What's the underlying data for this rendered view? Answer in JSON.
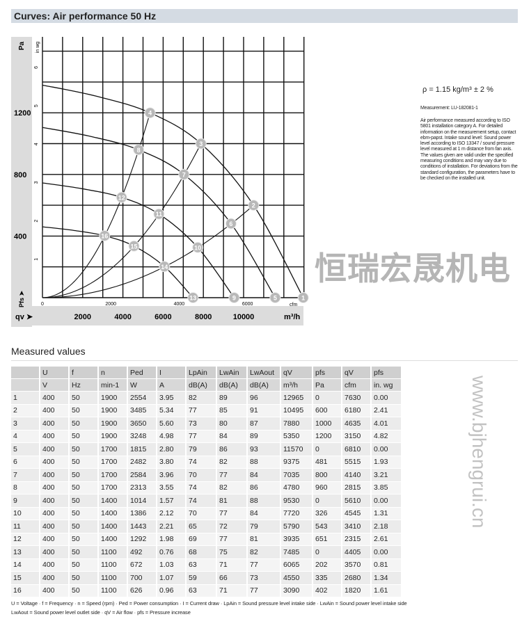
{
  "header": {
    "title": "Curves: Air performance 50 Hz"
  },
  "side_notes": {
    "density": "ρ = 1.15 kg/m³ ± 2 %",
    "measurement": "Measurement: LU-182081-1",
    "description": "Air performance measured according to ISO 5801 installation category A. For detailed information on the measurement setup, contact ebm-papst. Intake sound level: Sound power level according to ISO 13347 / sound pressure level measured at 1 m distance from fan axis. The values given are valid under the specified measuring conditions and may vary due to conditions of installation. For deviations from the standard configuration, the parameters have to be checked on the installed unit."
  },
  "chart_data": {
    "type": "line",
    "title": "Curves: Air performance 50 Hz",
    "xlabel": "qv ➤",
    "xunit": "m³/h",
    "xunit_secondary": "cfm",
    "ylabel": "Pa",
    "ylabel_secondary": "in wg",
    "ylabel_bottom": "Pfs ➤",
    "xlim": [
      0,
      13000
    ],
    "ylim": [
      0,
      1700
    ],
    "x_ticks": [
      "2000",
      "4000",
      "6000",
      "8000",
      "10000"
    ],
    "x_ticks_secondary": [
      "0",
      "2000",
      "4000",
      "6000"
    ],
    "y_ticks": [
      "400",
      "800",
      "1200"
    ],
    "y_ticks_secondary": [
      "1",
      "2",
      "3",
      "4",
      "5",
      "6"
    ],
    "grid": true,
    "points": [
      {
        "id": "1",
        "q": 12965,
        "p": 0
      },
      {
        "id": "2",
        "q": 10495,
        "p": 600
      },
      {
        "id": "3",
        "q": 7880,
        "p": 1000
      },
      {
        "id": "4",
        "q": 5350,
        "p": 1200
      },
      {
        "id": "5",
        "q": 11570,
        "p": 0
      },
      {
        "id": "6",
        "q": 9375,
        "p": 481
      },
      {
        "id": "7",
        "q": 7035,
        "p": 800
      },
      {
        "id": "8",
        "q": 4780,
        "p": 960
      },
      {
        "id": "9",
        "q": 9530,
        "p": 0
      },
      {
        "id": "10",
        "q": 7720,
        "p": 326
      },
      {
        "id": "11",
        "q": 5790,
        "p": 543
      },
      {
        "id": "12",
        "q": 3935,
        "p": 651
      },
      {
        "id": "13",
        "q": 7485,
        "p": 0
      },
      {
        "id": "14",
        "q": 6065,
        "p": 202
      },
      {
        "id": "15",
        "q": 4550,
        "p": 335
      },
      {
        "id": "16",
        "q": 3090,
        "p": 402
      }
    ],
    "fan_curves": [
      {
        "speed": 1900,
        "shutoff_p": 1380,
        "points": [
          "4",
          "3",
          "2",
          "1"
        ]
      },
      {
        "speed": 1700,
        "shutoff_p": 1105,
        "points": [
          "8",
          "7",
          "6",
          "5"
        ]
      },
      {
        "speed": 1400,
        "shutoff_p": 745,
        "points": [
          "12",
          "11",
          "10",
          "9"
        ]
      },
      {
        "speed": 1100,
        "shutoff_p": 460,
        "points": [
          "16",
          "15",
          "14",
          "13"
        ]
      }
    ],
    "system_curves": [
      [
        "16",
        "12",
        "8",
        "4"
      ],
      [
        "15",
        "11",
        "7",
        "3"
      ],
      [
        "14",
        "10",
        "6",
        "2"
      ]
    ]
  },
  "watermark": {
    "text": "恒瑞宏晟机电",
    "url": "www.bjhengrui.cn"
  },
  "table": {
    "title": "Measured values",
    "headers": [
      "",
      "U",
      "f",
      "n",
      "Ped",
      "I",
      "LpAin",
      "LwAin",
      "LwAout",
      "qV",
      "pfs",
      "qV",
      "pfs"
    ],
    "units": [
      "",
      "V",
      "Hz",
      "min-1",
      "W",
      "A",
      "dB(A)",
      "dB(A)",
      "dB(A)",
      "m³/h",
      "Pa",
      "cfm",
      "in. wg"
    ],
    "rows": [
      [
        "1",
        "400",
        "50",
        "1900",
        "2554",
        "3.95",
        "82",
        "89",
        "96",
        "12965",
        "0",
        "7630",
        "0.00"
      ],
      [
        "2",
        "400",
        "50",
        "1900",
        "3485",
        "5.34",
        "77",
        "85",
        "91",
        "10495",
        "600",
        "6180",
        "2.41"
      ],
      [
        "3",
        "400",
        "50",
        "1900",
        "3650",
        "5.60",
        "73",
        "80",
        "87",
        "7880",
        "1000",
        "4635",
        "4.01"
      ],
      [
        "4",
        "400",
        "50",
        "1900",
        "3248",
        "4.98",
        "77",
        "84",
        "89",
        "5350",
        "1200",
        "3150",
        "4.82"
      ],
      [
        "5",
        "400",
        "50",
        "1700",
        "1815",
        "2.80",
        "79",
        "86",
        "93",
        "11570",
        "0",
        "6810",
        "0.00"
      ],
      [
        "6",
        "400",
        "50",
        "1700",
        "2482",
        "3.80",
        "74",
        "82",
        "88",
        "9375",
        "481",
        "5515",
        "1.93"
      ],
      [
        "7",
        "400",
        "50",
        "1700",
        "2584",
        "3.96",
        "70",
        "77",
        "84",
        "7035",
        "800",
        "4140",
        "3.21"
      ],
      [
        "8",
        "400",
        "50",
        "1700",
        "2313",
        "3.55",
        "74",
        "82",
        "86",
        "4780",
        "960",
        "2815",
        "3.85"
      ],
      [
        "9",
        "400",
        "50",
        "1400",
        "1014",
        "1.57",
        "74",
        "81",
        "88",
        "9530",
        "0",
        "5610",
        "0.00"
      ],
      [
        "10",
        "400",
        "50",
        "1400",
        "1386",
        "2.12",
        "70",
        "77",
        "84",
        "7720",
        "326",
        "4545",
        "1.31"
      ],
      [
        "11",
        "400",
        "50",
        "1400",
        "1443",
        "2.21",
        "65",
        "72",
        "79",
        "5790",
        "543",
        "3410",
        "2.18"
      ],
      [
        "12",
        "400",
        "50",
        "1400",
        "1292",
        "1.98",
        "69",
        "77",
        "81",
        "3935",
        "651",
        "2315",
        "2.61"
      ],
      [
        "13",
        "400",
        "50",
        "1100",
        "492",
        "0.76",
        "68",
        "75",
        "82",
        "7485",
        "0",
        "4405",
        "0.00"
      ],
      [
        "14",
        "400",
        "50",
        "1100",
        "672",
        "1.03",
        "63",
        "71",
        "77",
        "6065",
        "202",
        "3570",
        "0.81"
      ],
      [
        "15",
        "400",
        "50",
        "1100",
        "700",
        "1.07",
        "59",
        "66",
        "73",
        "4550",
        "335",
        "2680",
        "1.34"
      ],
      [
        "16",
        "400",
        "50",
        "1100",
        "626",
        "0.96",
        "63",
        "71",
        "77",
        "3090",
        "402",
        "1820",
        "1.61"
      ]
    ],
    "footnote1": "U = Voltage · f = Frequency · n = Speed (rpm) · Ped = Power consumption · I = Current draw · LpAin = Sound pressure level intake side · LwAin = Sound power level intake side",
    "footnote2": "LwAout = Sound power level outlet side · qV = Air flow · pfs = Pressure increase"
  }
}
